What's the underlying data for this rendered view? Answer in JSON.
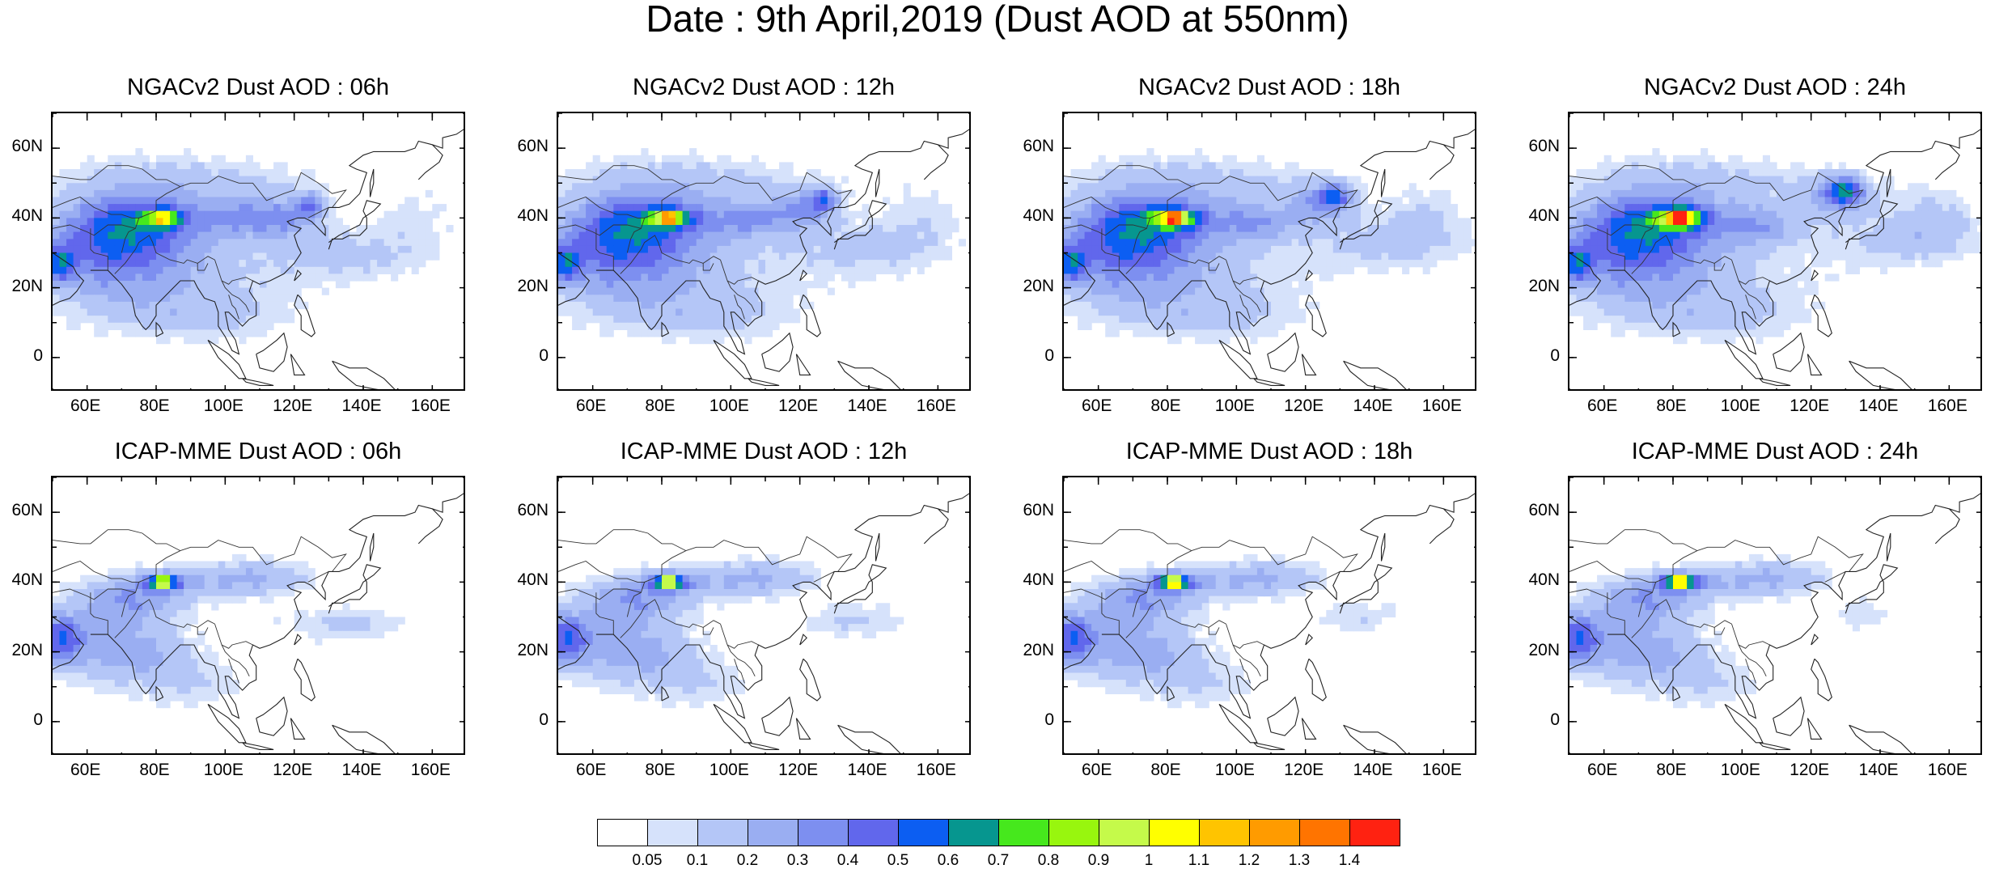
{
  "title": "Date : 9th April,2019 (Dust AOD at 550nm)",
  "panels": [
    {
      "title": "NGACv2 Dust AOD : 06h",
      "model": "ngac",
      "hour": 6
    },
    {
      "title": "NGACv2 Dust AOD : 12h",
      "model": "ngac",
      "hour": 12
    },
    {
      "title": "NGACv2 Dust AOD : 18h",
      "model": "ngac",
      "hour": 18
    },
    {
      "title": "NGACv2 Dust AOD : 24h",
      "model": "ngac",
      "hour": 24
    },
    {
      "title": "ICAP-MME Dust AOD : 06h",
      "model": "icap",
      "hour": 6
    },
    {
      "title": "ICAP-MME Dust AOD : 12h",
      "model": "icap",
      "hour": 12
    },
    {
      "title": "ICAP-MME Dust AOD : 18h",
      "model": "icap",
      "hour": 18
    },
    {
      "title": "ICAP-MME Dust AOD : 24h",
      "model": "icap",
      "hour": 24
    }
  ],
  "map": {
    "lon_range": [
      50,
      170
    ],
    "lat_range": [
      -10,
      70
    ],
    "lon_ticks": [
      60,
      80,
      100,
      120,
      140,
      160
    ],
    "lon_tick_labels": [
      "60E",
      "80E",
      "100E",
      "120E",
      "140E",
      "160E"
    ],
    "lat_ticks": [
      60,
      40,
      20,
      0
    ],
    "lat_tick_labels": [
      "60N",
      "40N",
      "20N",
      "0"
    ]
  },
  "colorbar": {
    "colors": [
      "#ffffff",
      "#d6e2fb",
      "#b4c6f7",
      "#9aaef2",
      "#7d8ff0",
      "#6167ec",
      "#0c5ef2",
      "#06968f",
      "#46e81d",
      "#98f60e",
      "#c5fa4a",
      "#ffff00",
      "#ffc400",
      "#ff9b00",
      "#ff7400",
      "#ff2211"
    ],
    "labels": [
      "0.05",
      "0.1",
      "0.2",
      "0.3",
      "0.4",
      "0.5",
      "0.6",
      "0.7",
      "0.8",
      "0.9",
      "1",
      "1.1",
      "1.2",
      "1.3",
      "1.4"
    ]
  }
}
